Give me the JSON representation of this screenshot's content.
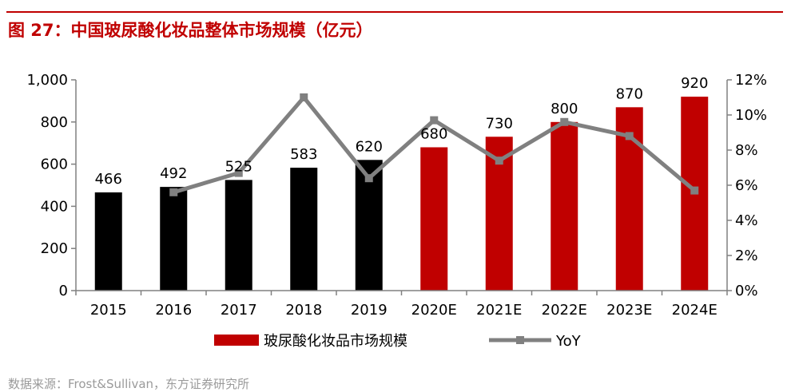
{
  "header": {
    "title": "图 27：中国玻尿酸化妆品整体市场规模（亿元）"
  },
  "footer": {
    "source": "数据来源：Frost&Sullivan，东方证券研究所"
  },
  "chart_data": {
    "type": "bar",
    "categories": [
      "2015",
      "2016",
      "2017",
      "2018",
      "2019",
      "2020E",
      "2021E",
      "2022E",
      "2023E",
      "2024E"
    ],
    "series": [
      {
        "name": "玻尿酸化妆品市场规模",
        "kind": "bar",
        "axis": "left",
        "values": [
          466,
          492,
          525,
          583,
          620,
          680,
          730,
          800,
          870,
          920
        ],
        "colors": [
          "#000000",
          "#000000",
          "#000000",
          "#000000",
          "#000000",
          "#c00000",
          "#c00000",
          "#c00000",
          "#c00000",
          "#c00000"
        ]
      },
      {
        "name": "YoY",
        "kind": "line",
        "axis": "right",
        "color": "#808080",
        "values": [
          null,
          0.056,
          0.067,
          0.11,
          0.064,
          0.097,
          0.074,
          0.096,
          0.088,
          0.057
        ]
      }
    ],
    "y_left": {
      "lim": [
        0,
        1000
      ],
      "ticks": [
        0,
        200,
        400,
        600,
        800,
        1000
      ],
      "tick_labels": [
        "0",
        "200",
        "400",
        "600",
        "800",
        "1,000"
      ]
    },
    "y_right": {
      "lim": [
        0,
        0.12
      ],
      "ticks": [
        0,
        0.02,
        0.04,
        0.06,
        0.08,
        0.1,
        0.12
      ],
      "tick_labels": [
        "0%",
        "2%",
        "4%",
        "6%",
        "8%",
        "10%",
        "12%"
      ]
    },
    "data_labels": [
      "466",
      "492",
      "525",
      "583",
      "620",
      "680",
      "730",
      "800",
      "870",
      "920"
    ],
    "legend": {
      "position": "bottom",
      "items": [
        {
          "label": "玻尿酸化妆品市场规模",
          "color": "#c00000",
          "shape": "bar"
        },
        {
          "label": "YoY",
          "color": "#808080",
          "shape": "line"
        }
      ]
    },
    "grid": false
  }
}
